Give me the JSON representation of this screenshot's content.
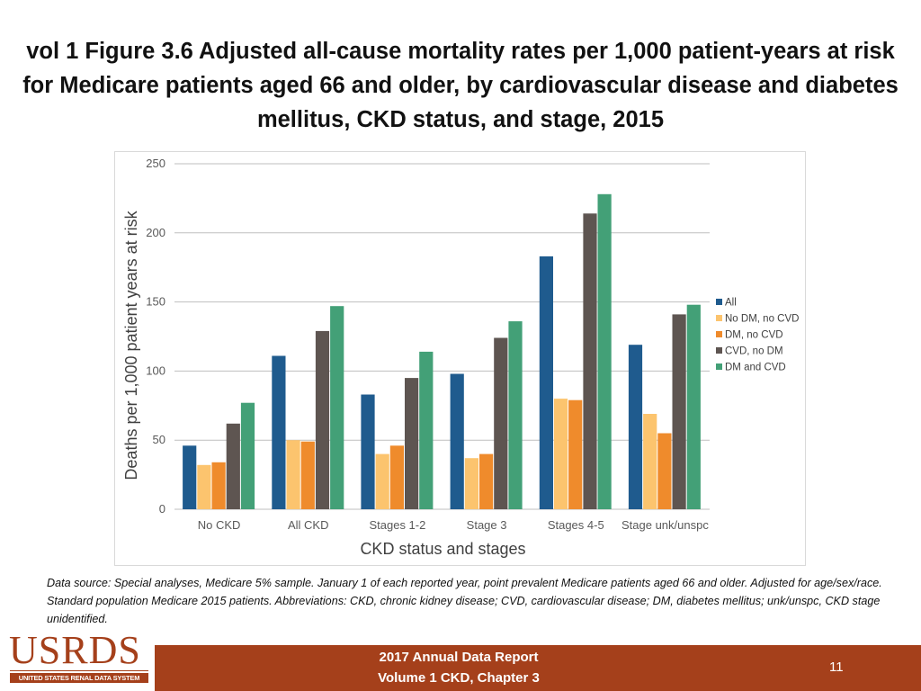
{
  "title": "vol 1 Figure 3.6 Adjusted all-cause mortality rates per 1,000 patient-years at risk for Medicare patients aged 66 and older, by cardiovascular disease and diabetes mellitus, CKD status, and stage, 2015",
  "chart_data": {
    "type": "bar",
    "title": "",
    "xlabel": "CKD status and stages",
    "ylabel": "Deaths per 1,000 patient years at risk",
    "ylim": [
      0,
      250
    ],
    "yticks": [
      0,
      50,
      100,
      150,
      200,
      250
    ],
    "grid": true,
    "legend_position": "right",
    "categories": [
      "No CKD",
      "All CKD",
      "Stages 1-2",
      "Stage 3",
      "Stages 4-5",
      "Stage unk/unspc"
    ],
    "series": [
      {
        "name": "All",
        "color": "#1f5b8e",
        "values": [
          46,
          111,
          83,
          98,
          183,
          119
        ]
      },
      {
        "name": "No DM, no CVD",
        "color": "#fcc46e",
        "values": [
          32,
          50,
          40,
          37,
          80,
          69
        ]
      },
      {
        "name": "DM, no CVD",
        "color": "#ef8b2c",
        "values": [
          34,
          49,
          46,
          40,
          79,
          55
        ]
      },
      {
        "name": "CVD, no DM",
        "color": "#5e5551",
        "values": [
          62,
          129,
          95,
          124,
          214,
          141
        ]
      },
      {
        "name": "DM and CVD",
        "color": "#43a077",
        "values": [
          77,
          147,
          114,
          136,
          228,
          148
        ]
      }
    ]
  },
  "footnote": "Data source: Special analyses, Medicare 5% sample. January 1 of each reported year, point prevalent Medicare patients aged 66 and older. Adjusted for age/sex/race. Standard population Medicare 2015 patients. Abbreviations: CKD, chronic kidney disease; CVD, cardiovascular disease; DM, diabetes mellitus; unk/unspc, CKD stage unidentified.",
  "footer": {
    "line1": "2017 Annual Data Report",
    "line2": "Volume 1 CKD, Chapter 3",
    "page_number": "11",
    "bar_color": "#a5401b"
  },
  "logo": {
    "main": "USRDS",
    "sub": "UNITED STATES RENAL DATA SYSTEM"
  }
}
